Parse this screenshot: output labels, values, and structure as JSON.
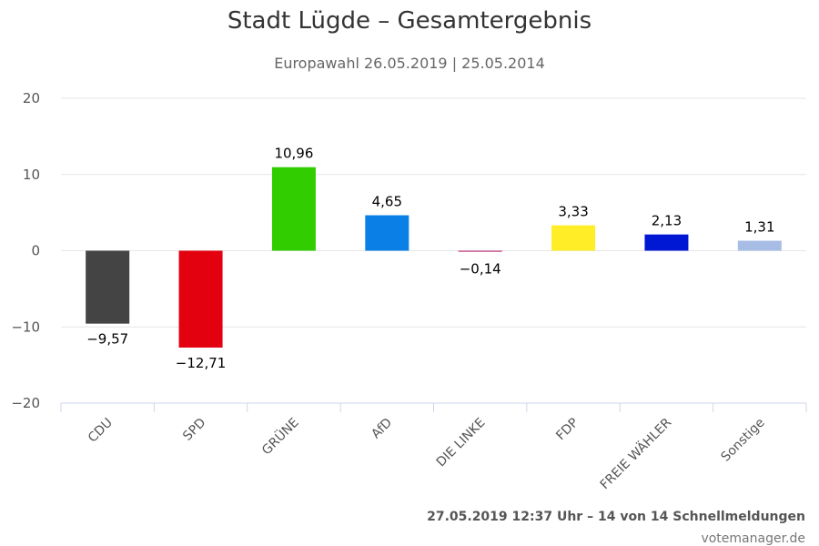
{
  "chart_data": {
    "type": "bar",
    "title": "Stadt Lügde – Gesamtergebnis",
    "subtitle": "Europawahl 26.05.2019 | 25.05.2014",
    "categories": [
      "CDU",
      "SPD",
      "GRÜNE",
      "AfD",
      "DIE LINKE",
      "FDP",
      "FREIE WÄHLER",
      "Sonstige"
    ],
    "values": [
      -9.57,
      -12.71,
      10.96,
      4.65,
      -0.14,
      3.33,
      2.13,
      1.31
    ],
    "data_labels": [
      "−9,57",
      "−12,71",
      "10,96",
      "4,65",
      "−0,14",
      "3,33",
      "2,13",
      "1,31"
    ],
    "colors": [
      "#444444",
      "#e3000f",
      "#32cd00",
      "#0a7fe6",
      "#be3075",
      "#ffed28",
      "#0018d4",
      "#a8bde6"
    ],
    "ylim": [
      -20,
      20
    ],
    "yticks": [
      20,
      10,
      0,
      -10,
      -20
    ],
    "ytick_labels": [
      "20",
      "10",
      "0",
      "−10",
      "−20"
    ],
    "grid": true,
    "legend": "none"
  },
  "footer": {
    "timestamp": "27.05.2019 12:37 Uhr – 14 von 14 Schnellmeldungen",
    "credit": "votemanager.de"
  }
}
